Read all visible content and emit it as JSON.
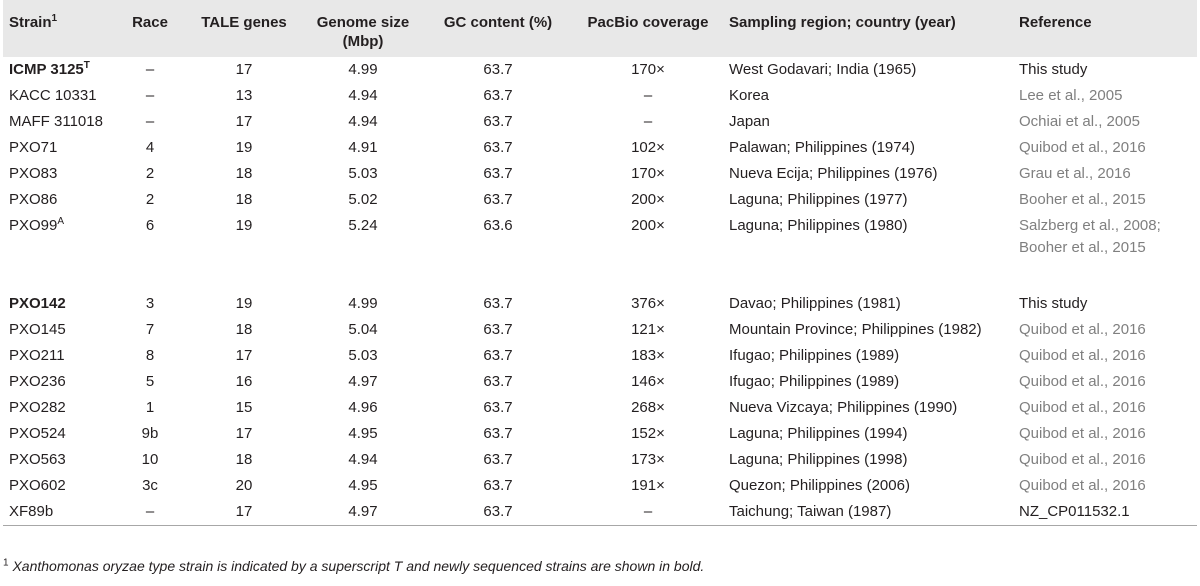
{
  "headers": {
    "strain": "Strain",
    "strain_sup": "1",
    "race": "Race",
    "tale": "TALE genes",
    "genome": "Genome size (Mbp)",
    "gc": "GC content (%)",
    "pacbio": "PacBio coverage",
    "region": "Sampling region; country (year)",
    "reference": "Reference"
  },
  "rows": [
    {
      "strain": "ICMP 3125",
      "sup": "T",
      "bold": true,
      "race": "–",
      "tale": "17",
      "genome": "4.99",
      "gc": "63.7",
      "pacbio": "170×",
      "region": "West Godavari; India (1965)",
      "reference": "This study",
      "ref_muted": false
    },
    {
      "strain": "KACC 10331",
      "sup": "",
      "bold": false,
      "race": "–",
      "tale": "13",
      "genome": "4.94",
      "gc": "63.7",
      "pacbio": "–",
      "region": "Korea",
      "reference": "Lee et al., 2005",
      "ref_muted": true
    },
    {
      "strain": "MAFF 311018",
      "sup": "",
      "bold": false,
      "race": "–",
      "tale": "17",
      "genome": "4.94",
      "gc": "63.7",
      "pacbio": "–",
      "region": "Japan",
      "reference": "Ochiai et al., 2005",
      "ref_muted": true
    },
    {
      "strain": "PXO71",
      "sup": "",
      "bold": false,
      "race": "4",
      "tale": "19",
      "genome": "4.91",
      "gc": "63.7",
      "pacbio": "102×",
      "region": "Palawan; Philippines (1974)",
      "reference": "Quibod et al., 2016",
      "ref_muted": true
    },
    {
      "strain": "PXO83",
      "sup": "",
      "bold": false,
      "race": "2",
      "tale": "18",
      "genome": "5.03",
      "gc": "63.7",
      "pacbio": "170×",
      "region": "Nueva Ecija; Philippines (1976)",
      "reference": "Grau et al., 2016",
      "ref_muted": true
    },
    {
      "strain": "PXO86",
      "sup": "",
      "bold": false,
      "race": "2",
      "tale": "18",
      "genome": "5.02",
      "gc": "63.7",
      "pacbio": "200×",
      "region": "Laguna; Philippines (1977)",
      "reference": "Booher et al., 2015",
      "ref_muted": true
    },
    {
      "strain": "PXO99",
      "sup": "A",
      "bold": false,
      "race": "6",
      "tale": "19",
      "genome": "5.24",
      "gc": "63.6",
      "pacbio": "200×",
      "region": "Laguna; Philippines (1980)",
      "reference": "Salzberg et al., 2008; Booher et al., 2015",
      "ref_muted": true,
      "tall": true
    },
    {
      "strain": "PXO142",
      "sup": "",
      "bold": true,
      "race": "3",
      "tale": "19",
      "genome": "4.99",
      "gc": "63.7",
      "pacbio": "376×",
      "region": "Davao; Philippines (1981)",
      "reference": "This study",
      "ref_muted": false
    },
    {
      "strain": "PXO145",
      "sup": "",
      "bold": false,
      "race": "7",
      "tale": "18",
      "genome": "5.04",
      "gc": "63.7",
      "pacbio": "121×",
      "region": "Mountain Province; Philippines (1982)",
      "reference": "Quibod et al., 2016",
      "ref_muted": true
    },
    {
      "strain": "PXO211",
      "sup": "",
      "bold": false,
      "race": "8",
      "tale": "17",
      "genome": "5.03",
      "gc": "63.7",
      "pacbio": "183×",
      "region": "Ifugao; Philippines (1989)",
      "reference": "Quibod et al., 2016",
      "ref_muted": true
    },
    {
      "strain": "PXO236",
      "sup": "",
      "bold": false,
      "race": "5",
      "tale": "16",
      "genome": "4.97",
      "gc": "63.7",
      "pacbio": "146×",
      "region": "Ifugao; Philippines (1989)",
      "reference": "Quibod et al., 2016",
      "ref_muted": true
    },
    {
      "strain": "PXO282",
      "sup": "",
      "bold": false,
      "race": "1",
      "tale": "15",
      "genome": "4.96",
      "gc": "63.7",
      "pacbio": "268×",
      "region": "Nueva Vizcaya; Philippines (1990)",
      "reference": "Quibod et al., 2016",
      "ref_muted": true
    },
    {
      "strain": "PXO524",
      "sup": "",
      "bold": false,
      "race": "9b",
      "tale": "17",
      "genome": "4.95",
      "gc": "63.7",
      "pacbio": "152×",
      "region": "Laguna; Philippines (1994)",
      "reference": "Quibod et al., 2016",
      "ref_muted": true
    },
    {
      "strain": "PXO563",
      "sup": "",
      "bold": false,
      "race": "10",
      "tale": "18",
      "genome": "4.94",
      "gc": "63.7",
      "pacbio": "173×",
      "region": "Laguna; Philippines (1998)",
      "reference": "Quibod et al., 2016",
      "ref_muted": true
    },
    {
      "strain": "PXO602",
      "sup": "",
      "bold": false,
      "race": "3c",
      "tale": "20",
      "genome": "4.95",
      "gc": "63.7",
      "pacbio": "191×",
      "region": "Quezon; Philippines (2006)",
      "reference": "Quibod et al., 2016",
      "ref_muted": true
    },
    {
      "strain": "XF89b",
      "sup": "",
      "bold": false,
      "race": "–",
      "tale": "17",
      "genome": "4.97",
      "gc": "63.7",
      "pacbio": "–",
      "region": "Taichung; Taiwan (1987)",
      "reference": "NZ_CP011532.1",
      "ref_muted": false
    }
  ],
  "footnote": {
    "sup": "1",
    "text": "Xanthomonas oryzae type strain is indicated by a superscript T and newly sequenced strains are shown in bold."
  },
  "colors": {
    "header_bg": "#e8e8e8",
    "text": "#231f20",
    "muted_reference": "#7f7f7f"
  }
}
